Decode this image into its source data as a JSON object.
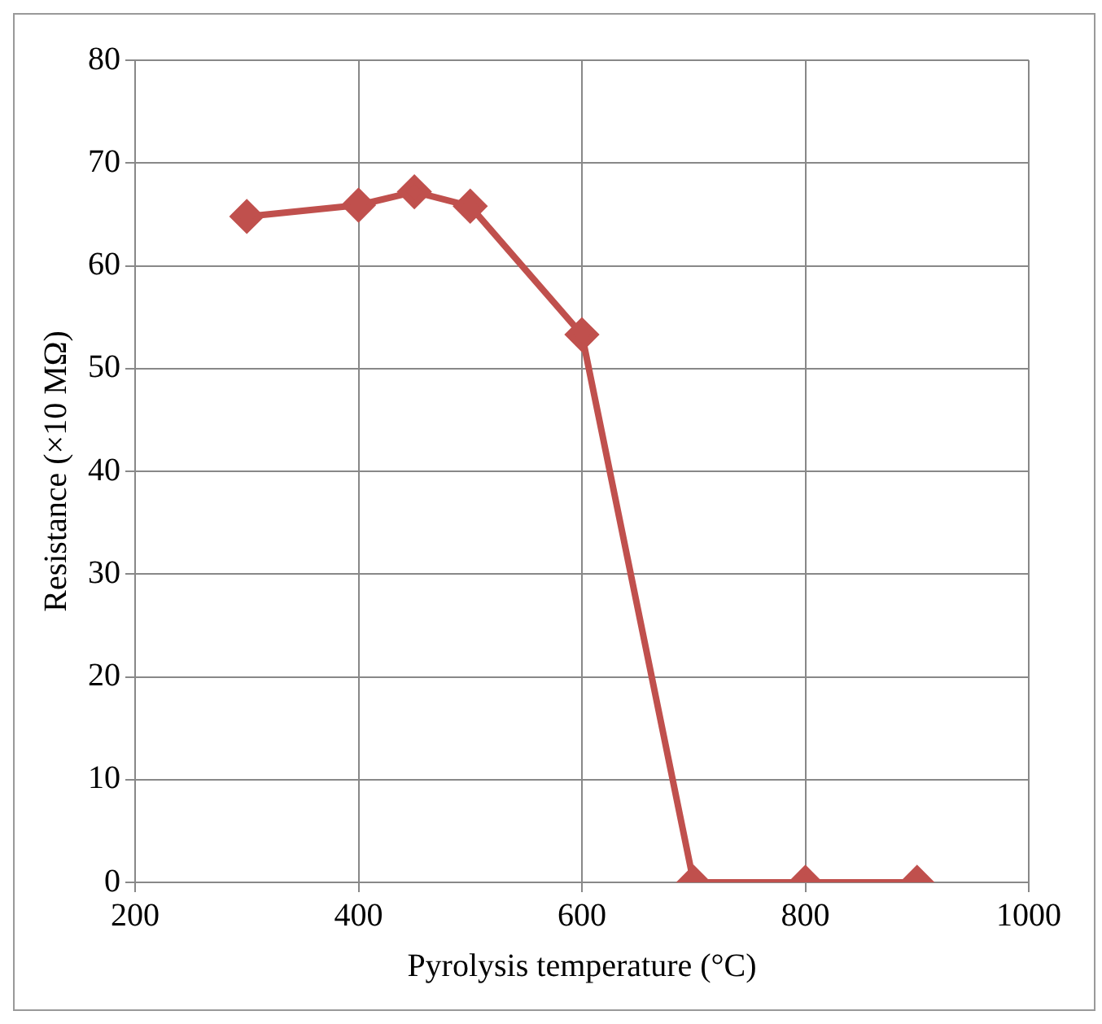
{
  "chart_data": {
    "type": "line",
    "xlabel": "Pyrolysis temperature (°C)",
    "ylabel": "Resistance (×10 MΩ)",
    "x": [
      300,
      400,
      450,
      500,
      600,
      700,
      800,
      900
    ],
    "series": [
      {
        "color": "#c0504d",
        "values": [
          64.8,
          65.9,
          67.2,
          65.8,
          53.3,
          0,
          0,
          0
        ]
      }
    ],
    "xlim": [
      200,
      1000
    ],
    "xticks": [
      200,
      400,
      600,
      800,
      1000
    ],
    "ylim": [
      0,
      80
    ],
    "yticks": [
      0,
      10,
      20,
      30,
      40,
      50,
      60,
      70,
      80
    ],
    "grid": true,
    "legend": false,
    "marker": "diamond",
    "line_style": "solid"
  }
}
